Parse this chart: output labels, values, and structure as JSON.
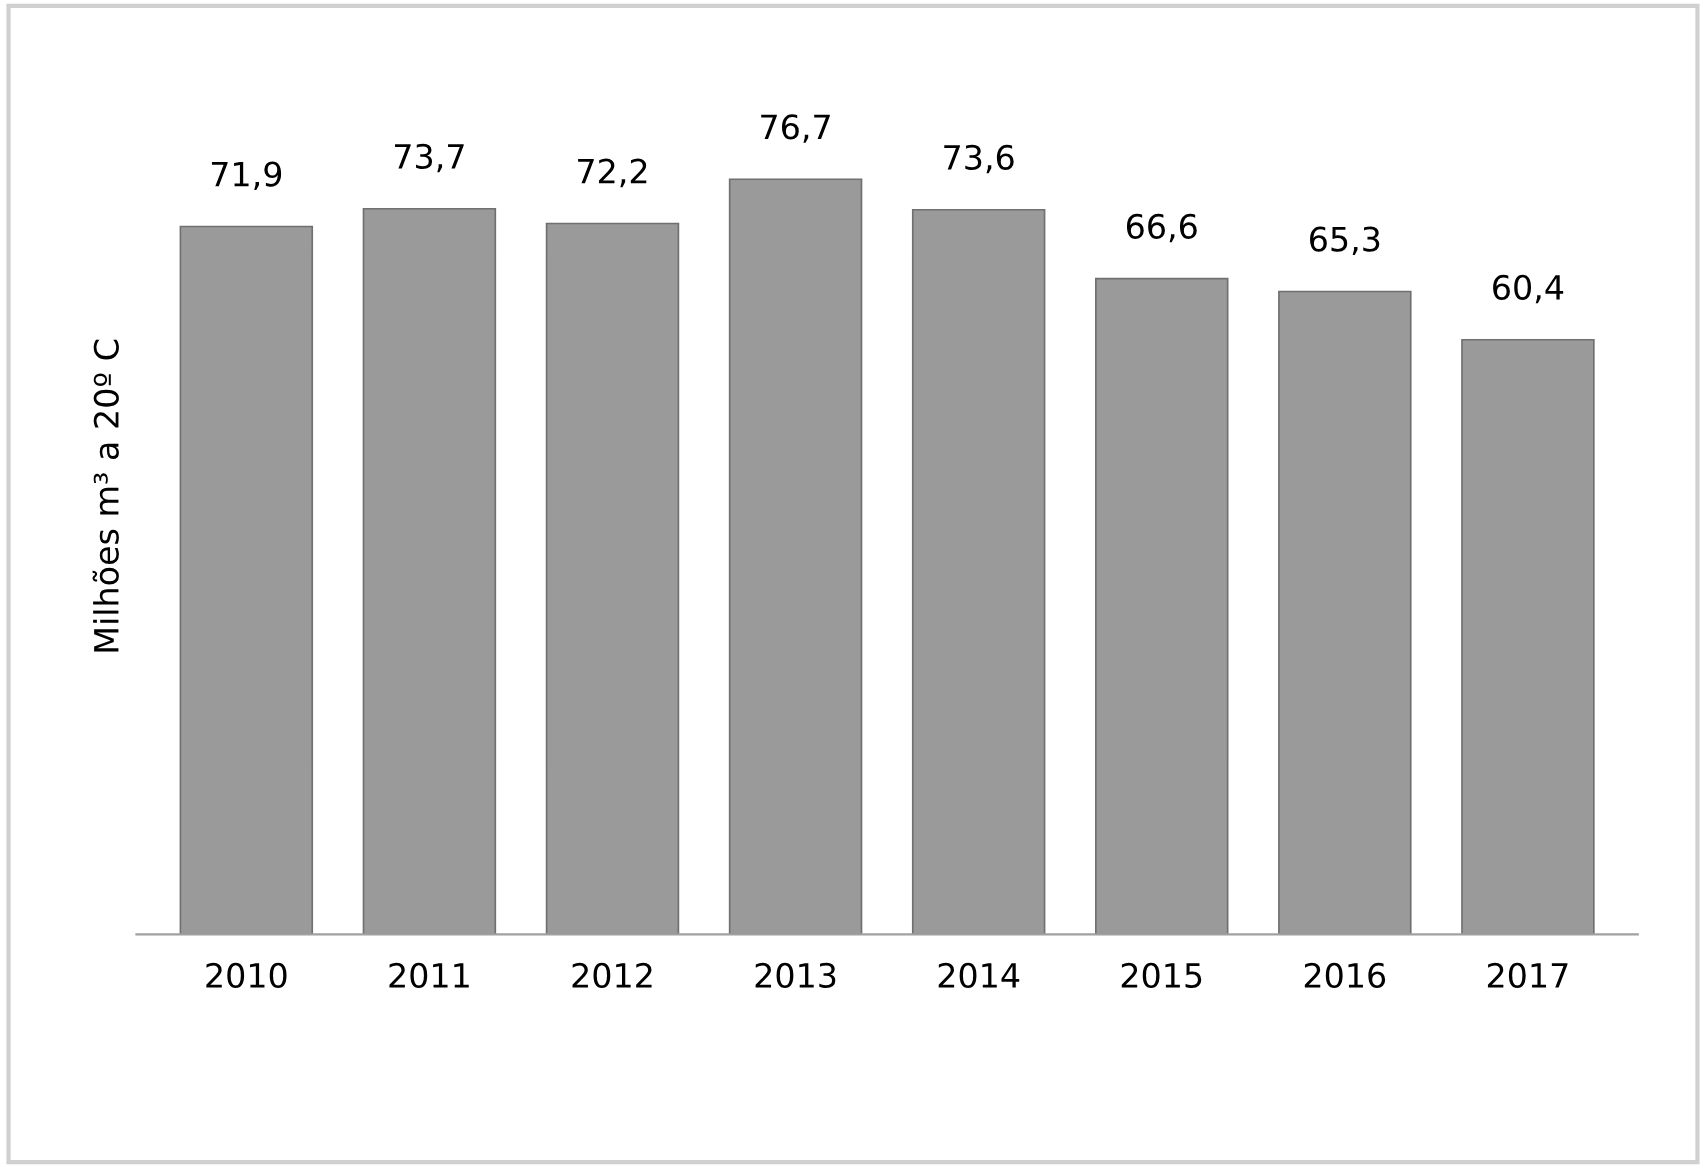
{
  "chart_data": {
    "type": "bar",
    "ylabel": "Milhões m³ a 20º C",
    "categories": [
      "2010",
      "2011",
      "2012",
      "2013",
      "2014",
      "2015",
      "2016",
      "2017"
    ],
    "values": [
      71.9,
      73.7,
      72.2,
      76.7,
      73.6,
      66.6,
      65.3,
      60.4
    ],
    "value_labels": [
      "71,9",
      "73,7",
      "72,2",
      "76,7",
      "73,6",
      "66,6",
      "65,3",
      "60,4"
    ],
    "color": "#9a9a9a",
    "grid": false,
    "legend": false
  }
}
